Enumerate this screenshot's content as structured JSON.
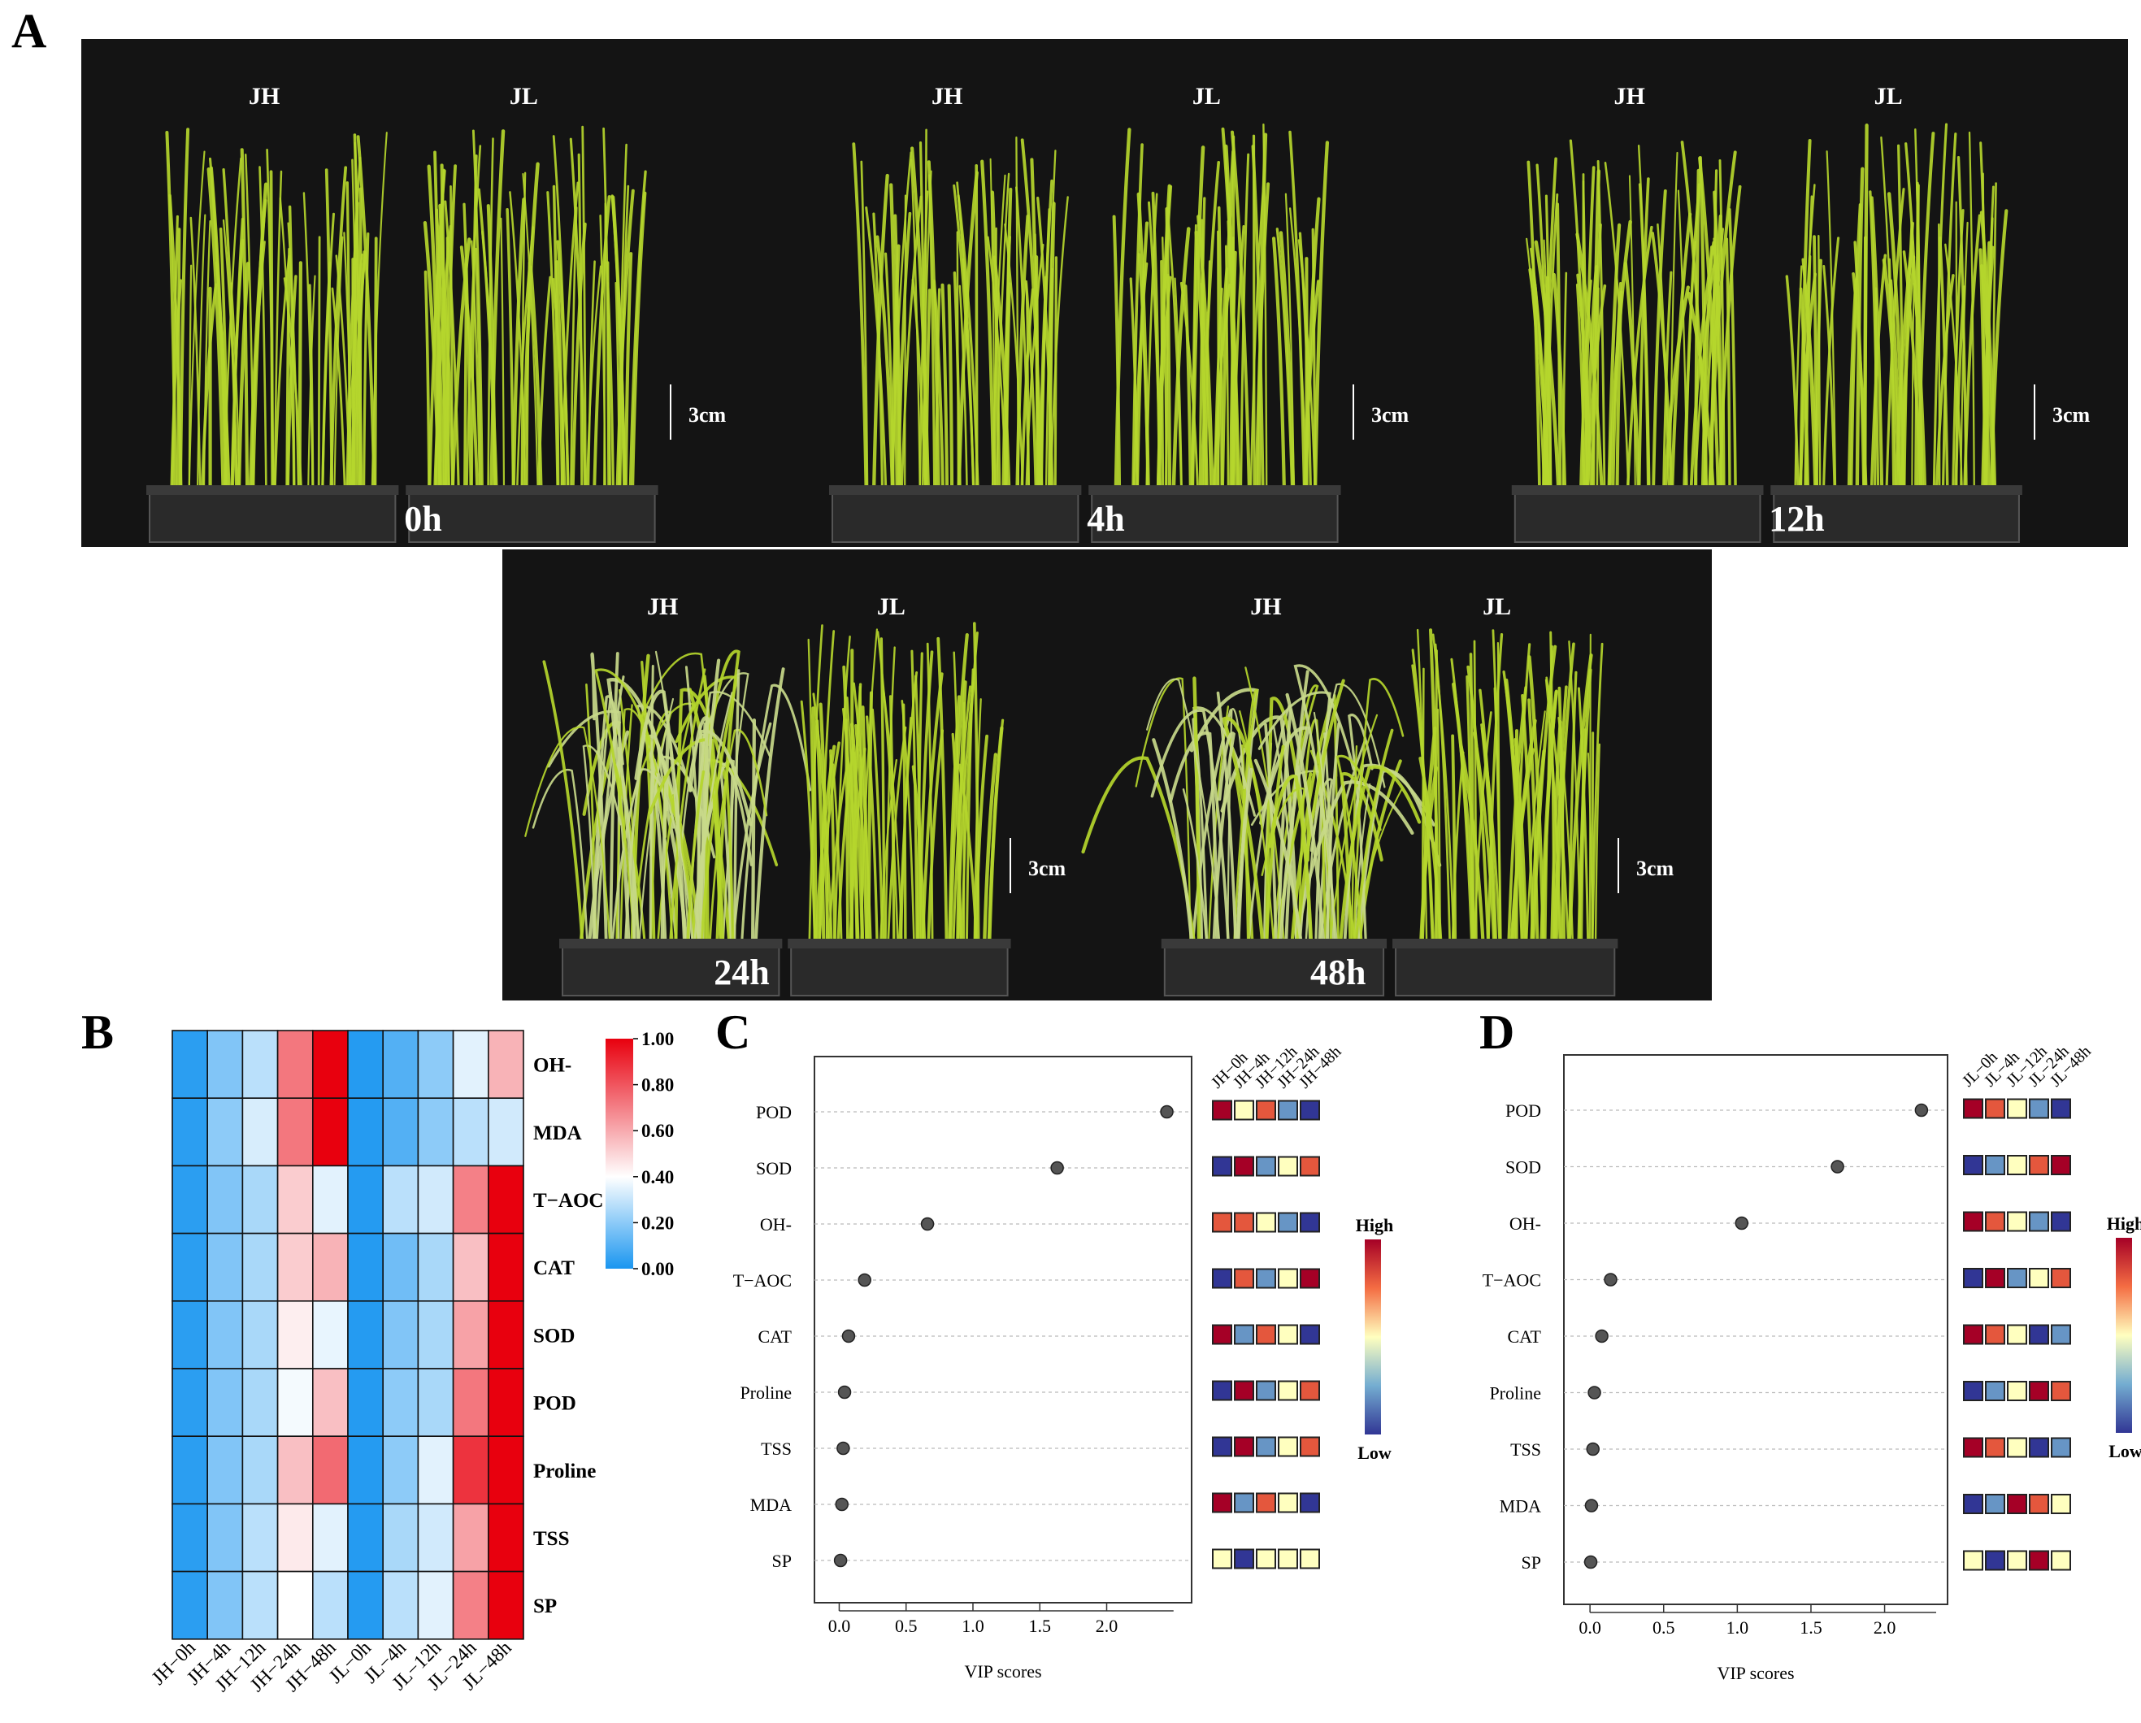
{
  "panel_letters": [
    "A",
    "B",
    "C",
    "D"
  ],
  "photos": [
    {
      "time": "0h",
      "left": "JH",
      "right": "JL",
      "scale": "3cm",
      "jh_vigor": 1.0,
      "jl_vigor": 1.0
    },
    {
      "time": "4h",
      "left": "JH",
      "right": "JL",
      "scale": "3cm",
      "jh_vigor": 0.95,
      "jl_vigor": 1.0
    },
    {
      "time": "12h",
      "left": "JH",
      "right": "JL",
      "scale": "3cm",
      "jh_vigor": 0.85,
      "jl_vigor": 1.0
    },
    {
      "time": "24h",
      "left": "JH",
      "right": "JL",
      "scale": "3cm",
      "jh_vigor": 0.6,
      "jl_vigor": 0.95
    },
    {
      "time": "48h",
      "left": "JH",
      "right": "JL",
      "scale": "3cm",
      "jh_vigor": 0.45,
      "jl_vigor": 0.9
    }
  ],
  "colors": {
    "photo_bg": "#141414",
    "leaf": "#b5d62c",
    "leaf_pale": "#c8d98a",
    "heat_low": "#1a96f0",
    "heat_mid": "#ffffff",
    "heat_high": "#e8000e",
    "vip_high": "#a50026",
    "vip_mid": "#ffffbf",
    "vip_low": "#313695"
  },
  "chart_data": [
    {
      "type": "heatmap",
      "rows": [
        "OH-",
        "MDA",
        "T−AOC",
        "CAT",
        "SOD",
        "POD",
        "Proline",
        "TSS",
        "SP"
      ],
      "columns": [
        "JH−0h",
        "JH−4h",
        "JH−12h",
        "JH−24h",
        "JH−48h",
        "JL−0h",
        "JL−4h",
        "JL−12h",
        "JL−24h",
        "JL−48h"
      ],
      "values": [
        [
          0.03,
          0.18,
          0.28,
          0.72,
          1.0,
          0.02,
          0.1,
          0.2,
          0.35,
          0.58
        ],
        [
          0.03,
          0.2,
          0.33,
          0.72,
          1.0,
          0.02,
          0.1,
          0.2,
          0.28,
          0.32
        ],
        [
          0.03,
          0.18,
          0.25,
          0.52,
          0.35,
          0.02,
          0.28,
          0.32,
          0.7,
          1.0
        ],
        [
          0.03,
          0.18,
          0.25,
          0.52,
          0.58,
          0.02,
          0.15,
          0.25,
          0.55,
          1.0
        ],
        [
          0.03,
          0.18,
          0.25,
          0.44,
          0.36,
          0.02,
          0.18,
          0.25,
          0.62,
          1.0
        ],
        [
          0.03,
          0.18,
          0.25,
          0.38,
          0.55,
          0.02,
          0.2,
          0.25,
          0.72,
          1.0
        ],
        [
          0.03,
          0.18,
          0.25,
          0.55,
          0.75,
          0.02,
          0.2,
          0.35,
          0.88,
          1.0
        ],
        [
          0.03,
          0.18,
          0.28,
          0.45,
          0.35,
          0.02,
          0.25,
          0.32,
          0.62,
          1.0
        ],
        [
          0.03,
          0.18,
          0.28,
          0.4,
          0.28,
          0.02,
          0.28,
          0.35,
          0.7,
          1.0
        ]
      ],
      "legend_ticks": [
        "1.00",
        "0.80",
        "0.60",
        "0.40",
        "0.20",
        "0.00"
      ],
      "legend_range": [
        0,
        1
      ]
    },
    {
      "type": "scatter",
      "xlabel": "VIP scores",
      "xlim": [
        -0.1,
        2.55
      ],
      "xticks": [
        "0.0",
        "0.5",
        "1.0",
        "1.5",
        "2.0"
      ],
      "categories": [
        "POD",
        "SOD",
        "OH-",
        "T−AOC",
        "CAT",
        "Proline",
        "TSS",
        "MDA",
        "SP"
      ],
      "values": [
        2.45,
        1.63,
        0.66,
        0.19,
        0.07,
        0.04,
        0.03,
        0.02,
        0.01
      ],
      "group_labels": [
        "JH−0h",
        "JH−4h",
        "JH−12h",
        "JH−24h",
        "JH−48h"
      ],
      "group_levels": [
        [
          1.0,
          0.5,
          0.8,
          0.2,
          0.0
        ],
        [
          0.0,
          1.0,
          0.2,
          0.5,
          0.8
        ],
        [
          0.8,
          0.8,
          0.5,
          0.2,
          0.0
        ],
        [
          0.0,
          0.8,
          0.2,
          0.5,
          1.0
        ],
        [
          1.0,
          0.2,
          0.8,
          0.5,
          0.0
        ],
        [
          0.0,
          1.0,
          0.2,
          0.5,
          0.8
        ],
        [
          0.0,
          1.0,
          0.2,
          0.5,
          0.8
        ],
        [
          1.0,
          0.2,
          0.8,
          0.5,
          0.0
        ],
        [
          0.5,
          0.0,
          0.5,
          0.5,
          0.5
        ]
      ],
      "legend_high": "High",
      "legend_low": "Low"
    },
    {
      "type": "scatter",
      "xlabel": "VIP scores",
      "xlim": [
        -0.1,
        2.35
      ],
      "xticks": [
        "0.0",
        "0.5",
        "1.0",
        "1.5",
        "2.0"
      ],
      "categories": [
        "POD",
        "SOD",
        "OH-",
        "T−AOC",
        "CAT",
        "Proline",
        "TSS",
        "MDA",
        "SP"
      ],
      "values": [
        2.25,
        1.68,
        1.03,
        0.14,
        0.08,
        0.03,
        0.02,
        0.01,
        0.005
      ],
      "group_labels": [
        "JL−0h",
        "JL−4h",
        "JL−12h",
        "JL−24h",
        "JL−48h"
      ],
      "group_levels": [
        [
          1.0,
          0.8,
          0.5,
          0.2,
          0.0
        ],
        [
          0.0,
          0.2,
          0.5,
          0.8,
          1.0
        ],
        [
          1.0,
          0.8,
          0.5,
          0.2,
          0.0
        ],
        [
          0.0,
          1.0,
          0.2,
          0.5,
          0.8
        ],
        [
          1.0,
          0.8,
          0.5,
          0.0,
          0.2
        ],
        [
          0.0,
          0.2,
          0.5,
          1.0,
          0.8
        ],
        [
          1.0,
          0.8,
          0.5,
          0.0,
          0.2
        ],
        [
          0.0,
          0.2,
          1.0,
          0.8,
          0.5
        ],
        [
          0.5,
          0.0,
          0.5,
          1.0,
          0.5
        ]
      ],
      "legend_high": "High",
      "legend_low": "Low"
    }
  ]
}
